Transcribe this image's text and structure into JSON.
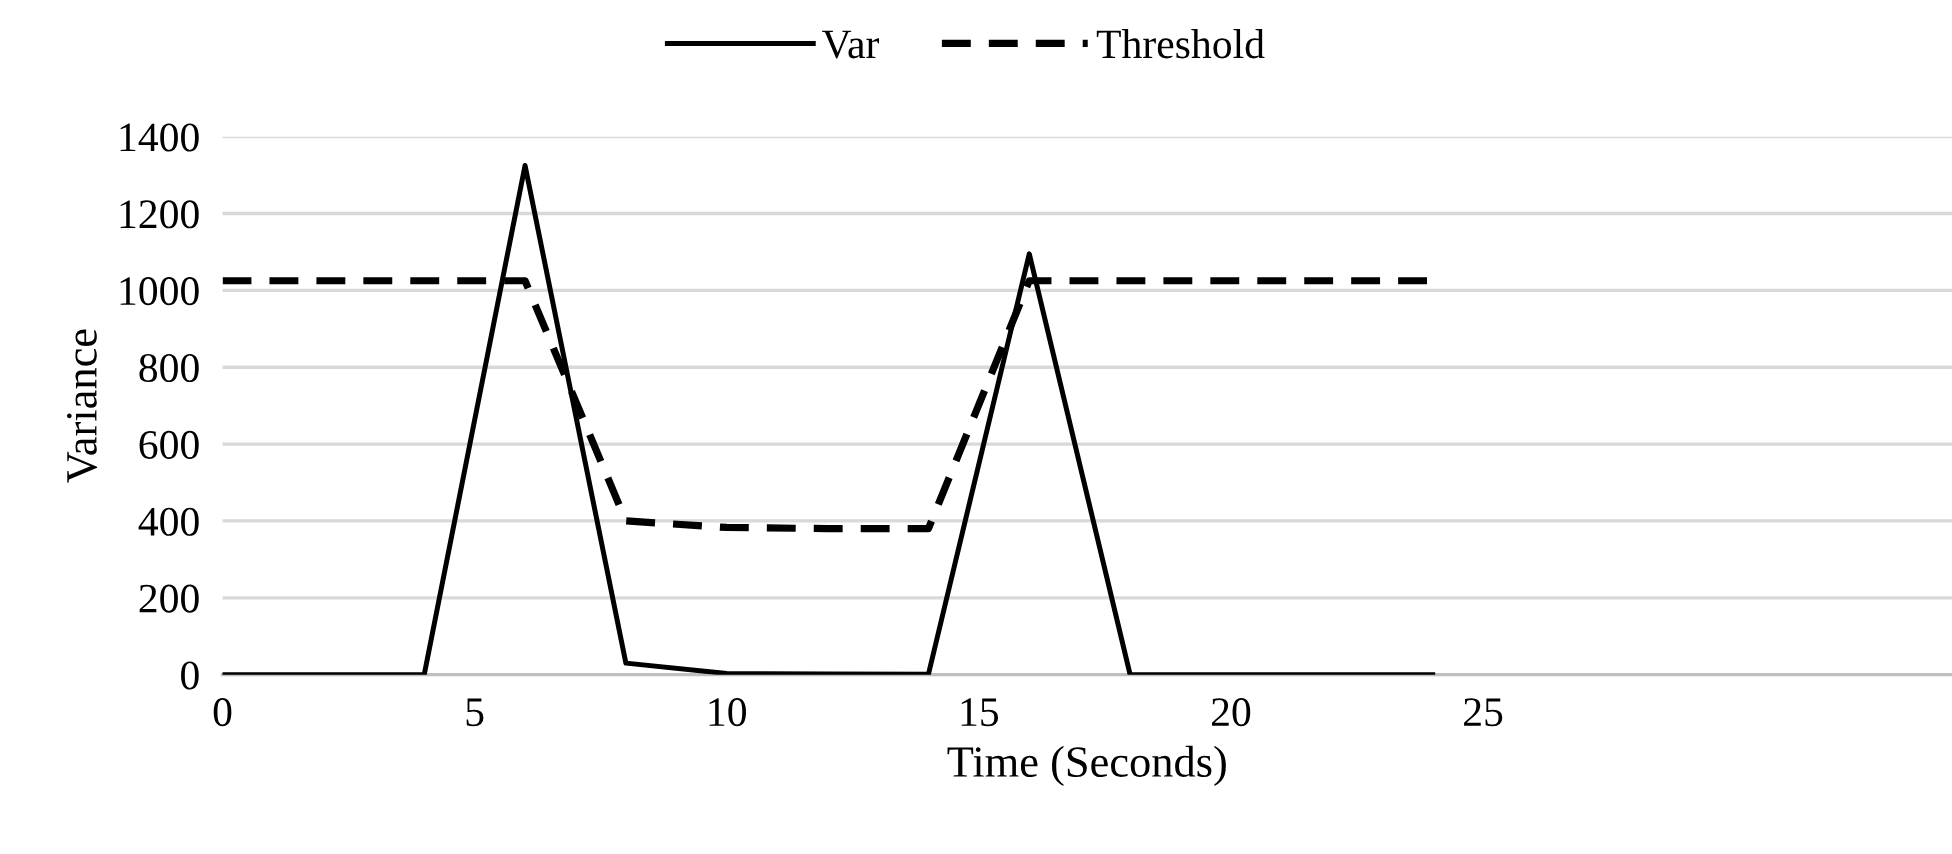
{
  "chart_data": {
    "type": "line",
    "xlabel": "Time (Seconds)",
    "ylabel": "Variance",
    "x": [
      0,
      2,
      4,
      6,
      8,
      10,
      12,
      14,
      16,
      18,
      20,
      22,
      24
    ],
    "series": [
      {
        "name": "Var",
        "color": "#000000",
        "line_style": "solid",
        "values": [
          0,
          0,
          0,
          1325,
          30,
          3,
          2,
          1,
          1095,
          0,
          0,
          0,
          0
        ]
      },
      {
        "name": "Threshold",
        "color": "#000000",
        "line_style": "dashed",
        "values": [
          1025,
          1025,
          1025,
          1025,
          400,
          383,
          380,
          380,
          1025,
          1025,
          1025,
          1025,
          1025
        ]
      }
    ],
    "xlim": [
      0,
      34.3
    ],
    "xticks": [
      0,
      5,
      10,
      15,
      20,
      25
    ],
    "ylim": [
      0,
      1400
    ],
    "yticks": [
      0,
      200,
      400,
      600,
      800,
      1000,
      1200,
      1400
    ],
    "grid": "y",
    "legend": "top",
    "marker": "none"
  }
}
